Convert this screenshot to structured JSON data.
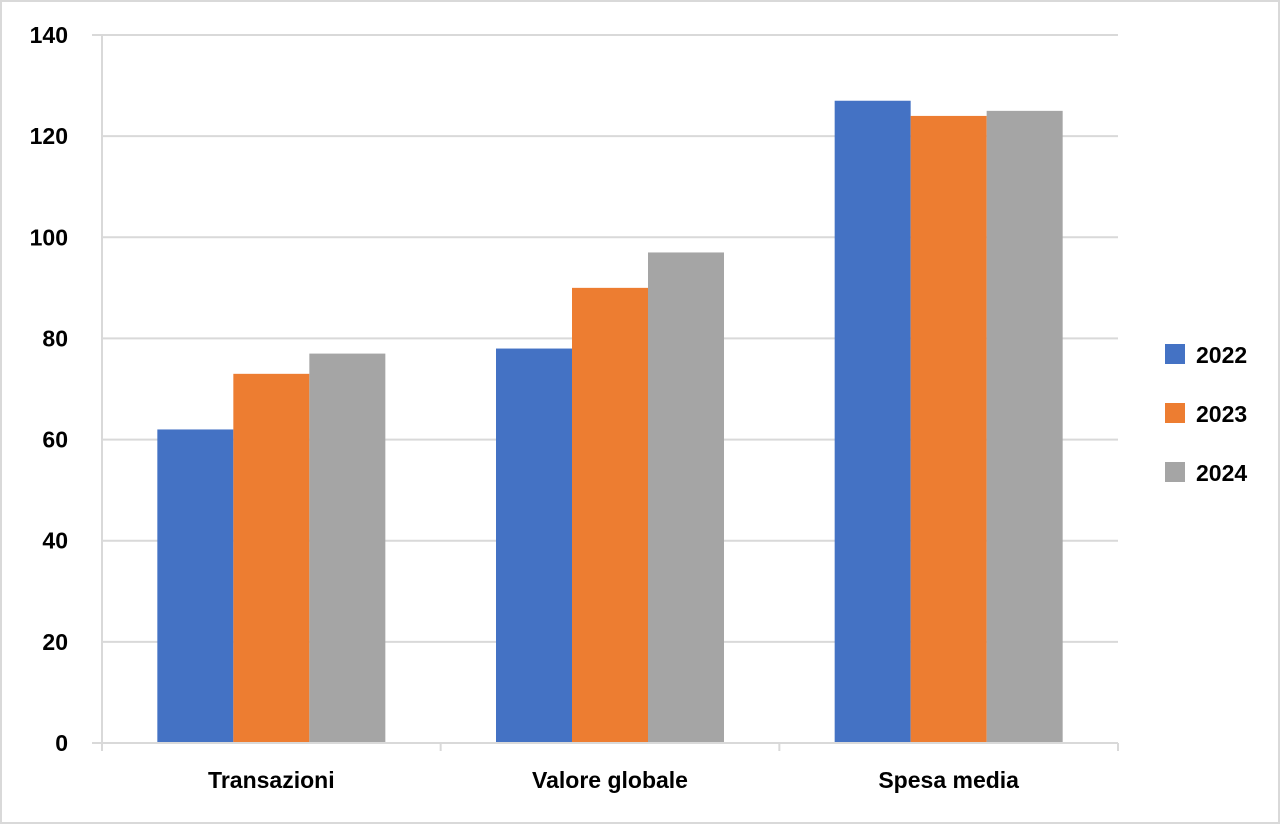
{
  "chart_data": {
    "type": "bar",
    "title": "",
    "xlabel": "",
    "ylabel": "",
    "categories": [
      "Transazioni",
      "Valore globale",
      "Spesa media"
    ],
    "series": [
      {
        "name": "2022",
        "values": [
          62,
          78,
          127
        ],
        "color": "#4472c4"
      },
      {
        "name": "2023",
        "values": [
          73,
          90,
          124
        ],
        "color": "#ed7d31"
      },
      {
        "name": "2024",
        "values": [
          77,
          97,
          125
        ],
        "color": "#a5a5a5"
      }
    ],
    "ylim": [
      0,
      140
    ],
    "yticks": [
      "0",
      "20",
      "40",
      "60",
      "80",
      "100",
      "120",
      "140"
    ],
    "grid": true,
    "legend_position": "right"
  }
}
